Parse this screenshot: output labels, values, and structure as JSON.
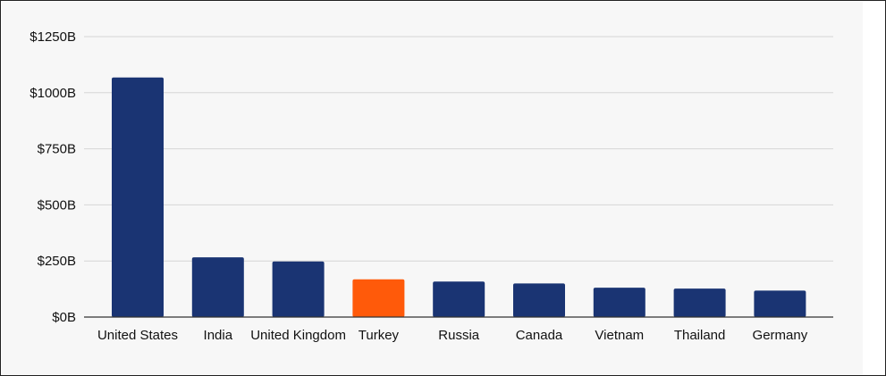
{
  "chart_data": {
    "type": "bar",
    "title": "",
    "xlabel": "",
    "ylabel": "",
    "categories": [
      "United States",
      "India",
      "United Kingdom",
      "Turkey",
      "Russia",
      "Canada",
      "Vietnam",
      "Thailand",
      "Germany"
    ],
    "values": [
      1068,
      266,
      248,
      168,
      158,
      150,
      131,
      127,
      118
    ],
    "bar_colors": [
      "#1a3473",
      "#1a3473",
      "#1a3473",
      "#ff5a0a",
      "#1a3473",
      "#1a3473",
      "#1a3473",
      "#1a3473",
      "#1a3473"
    ],
    "highlight_category": "Turkey",
    "ylim": [
      0,
      1250
    ],
    "yticks": [
      0,
      250,
      500,
      750,
      1000,
      1250
    ],
    "ytick_labels": [
      "$0B",
      "$250B",
      "$500B",
      "$750B",
      "$1000B",
      "$1250B"
    ],
    "grid": true,
    "legend": "none",
    "colors": {
      "bar_default": "#1a3473",
      "bar_highlight": "#ff5a0a",
      "gridline": "#d6d6d6",
      "axis": "#333333",
      "background": "#f7f7f7"
    }
  }
}
